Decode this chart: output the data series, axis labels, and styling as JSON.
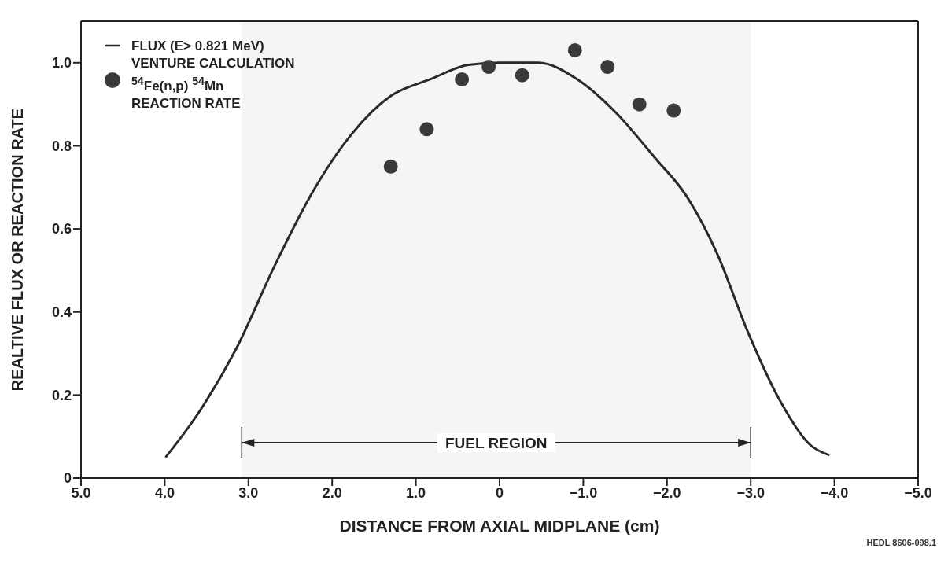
{
  "chart_data": {
    "type": "line",
    "xlabel": "DISTANCE FROM AXIAL MIDPLANE (cm)",
    "ylabel": "REALTIVE FLUX OR REACTION RATE",
    "series": [
      {
        "name": "FLUX (E> 0.821 MeV)\nVENTURE CALCULATION",
        "marker": "none",
        "color": "#2a2a2a",
        "x": [
          3.99,
          3.62,
          3.15,
          2.69,
          2.23,
          1.76,
          1.3,
          0.83,
          0.37,
          0,
          -0.46,
          -0.93,
          -1.39,
          -1.86,
          -2.23,
          -2.6,
          -2.97,
          -3.34,
          -3.71,
          -3.94
        ],
        "values": [
          0.05,
          0.15,
          0.31,
          0.51,
          0.69,
          0.83,
          0.92,
          0.96,
          0.995,
          1.0,
          1.0,
          0.96,
          0.88,
          0.77,
          0.68,
          0.54,
          0.35,
          0.19,
          0.08,
          0.055
        ]
      },
      {
        "type": "scatter",
        "marker": "circle",
        "name": "$^{54}$Fe(n,p) $^{54}$Mn\nREACTION RATE",
        "color": "#3a3a3a",
        "x": [
          1.3,
          0.87,
          0.45,
          0.13,
          -0.27,
          -0.9,
          -1.29,
          -1.67,
          -2.08
        ],
        "values": [
          0.75,
          0.84,
          0.96,
          0.99,
          0.97,
          1.03,
          0.99,
          0.9,
          0.885
        ]
      }
    ],
    "xlim": [
      5,
      -5
    ],
    "xticks": [
      {
        "value": 5,
        "label": "5.0"
      },
      {
        "value": 4,
        "label": "4.0"
      },
      {
        "value": 3,
        "label": "3.0"
      },
      {
        "value": 2,
        "label": "2.0"
      },
      {
        "value": 1,
        "label": "1.0"
      },
      0,
      {
        "value": -1,
        "label": "−1.0"
      },
      {
        "value": -2,
        "label": "−2.0"
      },
      {
        "value": -3,
        "label": "−3.0"
      },
      {
        "value": -4,
        "label": "−4.0"
      },
      {
        "value": -5,
        "label": "−5.0"
      }
    ],
    "ylim": [
      0,
      1.1
    ],
    "yticks": [
      0,
      0.2,
      0.4,
      0.6,
      0.8,
      {
        "value": 1,
        "label": "1.0"
      }
    ],
    "bands": [
      {
        "axis": "x",
        "from": 3.08,
        "to": -3.0,
        "label": "FUEL REGION"
      }
    ],
    "legend": "top left",
    "annotations": [
      "HEDL 8606-098.1"
    ]
  }
}
